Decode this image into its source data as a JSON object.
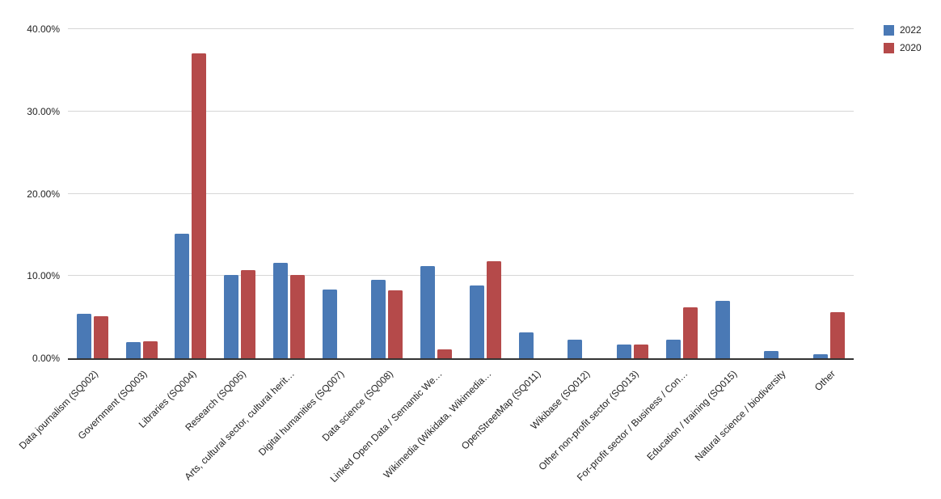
{
  "chart_data": {
    "type": "bar",
    "title": "",
    "categories": [
      "Data journalism (SQ002)",
      "Government (SQ003)",
      "Libraries (SQ004)",
      "Research (SQ005)",
      "Arts, cultural sector, cultural herit…",
      "Digital humanities (SQ007)",
      "Data science (SQ008)",
      "Linked Open Data / Semantic We…",
      "Wikimedia (Wikidata, Wikimedia…",
      "OpenStreetMap (SQ011)",
      "Wikibase (SQ012)",
      "Other non-profit sector (SQ013)",
      "For-profit sector / Business / Con…",
      "Education / training (SQ015)",
      "Natural science / biodiversity",
      "Other"
    ],
    "series": [
      {
        "name": "2022",
        "color": "#4a79b5",
        "values": [
          5.4,
          2.0,
          15.1,
          10.1,
          11.6,
          8.4,
          9.5,
          11.2,
          8.8,
          3.1,
          2.3,
          1.7,
          2.3,
          7.0,
          0.9,
          0.5
        ]
      },
      {
        "name": "2020",
        "color": "#b54a4a",
        "values": [
          5.1,
          2.1,
          37.1,
          10.7,
          10.1,
          0,
          8.3,
          1.1,
          11.8,
          0,
          0,
          1.7,
          6.2,
          0,
          0,
          5.6
        ]
      }
    ],
    "xlabel": "",
    "ylabel": "",
    "ylim": [
      0,
      40
    ],
    "yticks": [
      "0.00%",
      "10.00%",
      "20.00%",
      "30.00%",
      "40.00%"
    ],
    "grid": true,
    "legend_position": "top-right",
    "colors": {
      "gridline": "#d6d6d6",
      "axis_line": "#333333",
      "tick_text": "#222222",
      "background": "#ffffff"
    }
  }
}
